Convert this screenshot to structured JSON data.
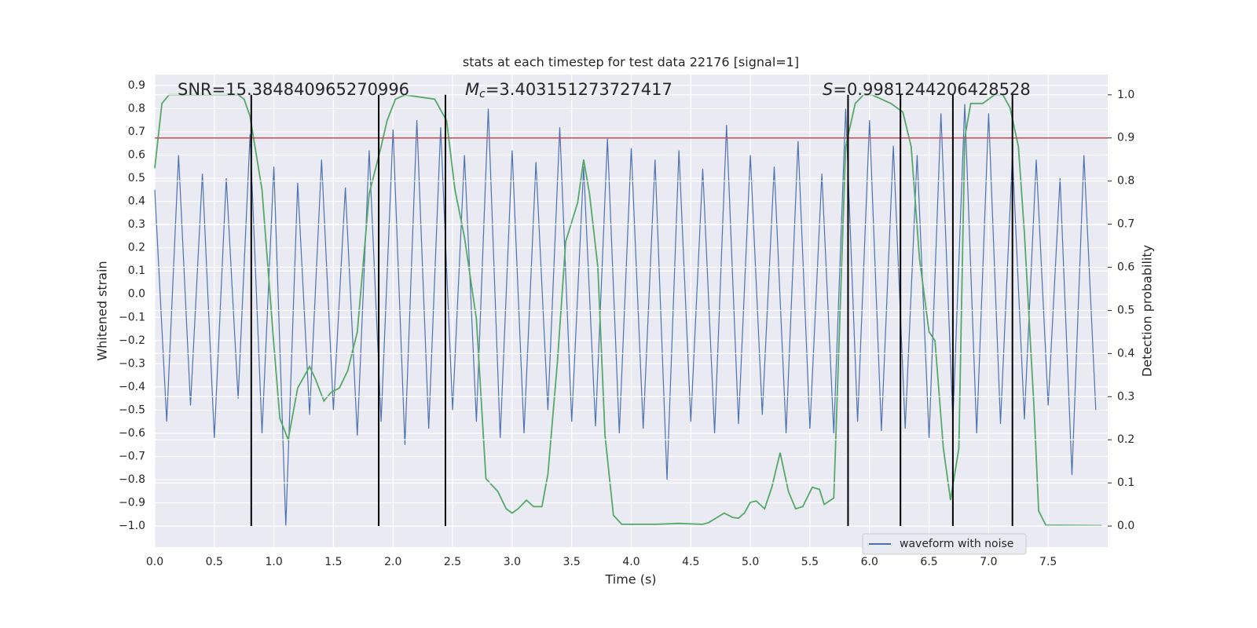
{
  "chart_data": {
    "type": "line",
    "title": "stats at each timestep for test data 22176 [signal=1]",
    "xlabel": "Time (s)",
    "ylabel": "Whitened strain",
    "y2label": "Detection probability",
    "annotations": {
      "snr": "SNR=15.384840965270996",
      "mc": {
        "symbol": "M",
        "subscript": "c",
        "text": "=3.403151273727417"
      },
      "s": {
        "symbol": "S",
        "text": "=0.9981244206428528"
      }
    },
    "xlim": [
      0,
      8.0
    ],
    "ylim": [
      -1.091,
      0.947
    ],
    "y2lim": [
      -0.049,
      1.047
    ],
    "xticks": [
      {
        "value": 0,
        "label": "0.0"
      },
      {
        "value": 0.5,
        "label": "0.5"
      },
      {
        "value": 1,
        "label": "1.0"
      },
      {
        "value": 1.5,
        "label": "1.5"
      },
      {
        "value": 2,
        "label": "2.0"
      },
      {
        "value": 2.5,
        "label": "2.5"
      },
      {
        "value": 3,
        "label": "3.0"
      },
      {
        "value": 3.5,
        "label": "3.5"
      },
      {
        "value": 4,
        "label": "4.0"
      },
      {
        "value": 4.5,
        "label": "4.5"
      },
      {
        "value": 5,
        "label": "5.0"
      },
      {
        "value": 5.5,
        "label": "5.5"
      },
      {
        "value": 6,
        "label": "6.0"
      },
      {
        "value": 6.5,
        "label": "6.5"
      },
      {
        "value": 7,
        "label": "7.0"
      },
      {
        "value": 7.5,
        "label": "7.5"
      }
    ],
    "yticks": [
      {
        "value": -1.0,
        "label": "−1.0"
      },
      {
        "value": -0.9,
        "label": "−0.9"
      },
      {
        "value": -0.8,
        "label": "−0.8"
      },
      {
        "value": -0.7,
        "label": "−0.7"
      },
      {
        "value": -0.6,
        "label": "−0.6"
      },
      {
        "value": -0.5,
        "label": "−0.5"
      },
      {
        "value": -0.4,
        "label": "−0.4"
      },
      {
        "value": -0.3,
        "label": "−0.3"
      },
      {
        "value": -0.2,
        "label": "−0.2"
      },
      {
        "value": -0.1,
        "label": "−0.1"
      },
      {
        "value": 0,
        "label": "0.0"
      },
      {
        "value": 0.1,
        "label": "0.1"
      },
      {
        "value": 0.2,
        "label": "0.2"
      },
      {
        "value": 0.3,
        "label": "0.3"
      },
      {
        "value": 0.4,
        "label": "0.4"
      },
      {
        "value": 0.5,
        "label": "0.5"
      },
      {
        "value": 0.6,
        "label": "0.6"
      },
      {
        "value": 0.7,
        "label": "0.7"
      },
      {
        "value": 0.8,
        "label": "0.8"
      },
      {
        "value": 0.9,
        "label": "0.9"
      }
    ],
    "y2ticks": [
      {
        "value": 0,
        "label": "0.0"
      },
      {
        "value": 0.1,
        "label": "0.1"
      },
      {
        "value": 0.2,
        "label": "0.2"
      },
      {
        "value": 0.3,
        "label": "0.3"
      },
      {
        "value": 0.4,
        "label": "0.4"
      },
      {
        "value": 0.5,
        "label": "0.5"
      },
      {
        "value": 0.6,
        "label": "0.6"
      },
      {
        "value": 0.7,
        "label": "0.7"
      },
      {
        "value": 0.8,
        "label": "0.8"
      },
      {
        "value": 0.9,
        "label": "0.9"
      },
      {
        "value": 1,
        "label": "1.0"
      }
    ],
    "grid": true,
    "legend": "lower right",
    "threshold": 0.9,
    "threshold_color": "#c44e52",
    "vlines": [
      0.81,
      1.88,
      2.44,
      5.82,
      6.26,
      6.7,
      7.2
    ],
    "vline_range": [
      -1.0,
      0.86
    ],
    "vline_color": "#000000",
    "series": [
      {
        "name": "waveform with noise",
        "color": "#4c72b0",
        "x": [
          0.0,
          0.1,
          0.2,
          0.3,
          0.4,
          0.5,
          0.6,
          0.7,
          0.8,
          0.9,
          1.0,
          1.1,
          1.2,
          1.3,
          1.4,
          1.5,
          1.6,
          1.7,
          1.8,
          1.9,
          2.0,
          2.1,
          2.2,
          2.3,
          2.4,
          2.5,
          2.6,
          2.7,
          2.8,
          2.9,
          3.0,
          3.1,
          3.2,
          3.3,
          3.4,
          3.5,
          3.6,
          3.7,
          3.8,
          3.9,
          4.0,
          4.1,
          4.2,
          4.3,
          4.4,
          4.5,
          4.6,
          4.7,
          4.8,
          4.9,
          5.0,
          5.1,
          5.2,
          5.3,
          5.4,
          5.5,
          5.6,
          5.7,
          5.8,
          5.9,
          6.0,
          6.1,
          6.2,
          6.3,
          6.4,
          6.5,
          6.6,
          6.7,
          6.8,
          6.9,
          7.0,
          7.1,
          7.2,
          7.3,
          7.4,
          7.5,
          7.6,
          7.7,
          7.8,
          7.9
        ],
        "values": [
          0.45,
          -0.55,
          0.6,
          -0.48,
          0.52,
          -0.62,
          0.5,
          -0.45,
          0.69,
          -0.6,
          0.55,
          -1.0,
          0.48,
          -0.52,
          0.58,
          -0.5,
          0.46,
          -0.61,
          0.62,
          -0.55,
          0.71,
          -0.65,
          0.75,
          -0.58,
          0.72,
          -0.5,
          0.6,
          -0.55,
          0.8,
          -0.62,
          0.62,
          -0.6,
          0.57,
          -0.5,
          0.72,
          -0.55,
          0.55,
          -0.57,
          0.67,
          -0.6,
          0.63,
          -0.58,
          0.58,
          -0.8,
          0.62,
          -0.55,
          0.54,
          -0.6,
          0.73,
          -0.56,
          0.6,
          -0.52,
          0.55,
          -0.6,
          0.66,
          -0.58,
          0.52,
          -0.6,
          0.8,
          -0.55,
          0.75,
          -0.59,
          0.64,
          -0.58,
          0.6,
          -0.62,
          0.78,
          -0.55,
          0.82,
          -0.6,
          0.78,
          -0.56,
          0.6,
          -0.54,
          0.58,
          -0.48,
          0.5,
          -0.78,
          0.6,
          -0.5
        ]
      },
      {
        "color": "#55a868",
        "axis": "y2",
        "x": [
          0.0,
          0.06,
          0.12,
          0.7,
          0.75,
          0.8,
          0.9,
          1.0,
          1.05,
          1.12,
          1.2,
          1.3,
          1.35,
          1.42,
          1.48,
          1.55,
          1.62,
          1.7,
          1.8,
          1.9,
          1.95,
          2.02,
          2.1,
          2.35,
          2.45,
          2.52,
          2.6,
          2.7,
          2.78,
          2.88,
          2.95,
          3.0,
          3.05,
          3.12,
          3.18,
          3.25,
          3.3,
          3.38,
          3.45,
          3.55,
          3.6,
          3.65,
          3.72,
          3.78,
          3.85,
          3.92,
          4.2,
          4.4,
          4.6,
          4.65,
          4.78,
          4.85,
          4.9,
          4.95,
          5.0,
          5.05,
          5.12,
          5.18,
          5.25,
          5.32,
          5.38,
          5.44,
          5.52,
          5.58,
          5.62,
          5.7,
          5.8,
          5.88,
          5.95,
          6.02,
          6.18,
          6.28,
          6.35,
          6.42,
          6.5,
          6.55,
          6.62,
          6.68,
          6.75,
          6.8,
          6.85,
          6.95,
          7.05,
          7.12,
          7.18,
          7.25,
          7.3,
          7.38,
          7.42,
          7.48,
          7.95
        ],
        "values": [
          0.83,
          0.98,
          1.0,
          1.0,
          0.99,
          0.95,
          0.78,
          0.42,
          0.25,
          0.2,
          0.32,
          0.37,
          0.34,
          0.29,
          0.31,
          0.32,
          0.36,
          0.45,
          0.77,
          0.88,
          0.94,
          0.99,
          1.0,
          0.99,
          0.94,
          0.78,
          0.67,
          0.48,
          0.11,
          0.08,
          0.04,
          0.03,
          0.04,
          0.06,
          0.045,
          0.045,
          0.12,
          0.38,
          0.66,
          0.75,
          0.85,
          0.77,
          0.6,
          0.21,
          0.025,
          0.004,
          0.004,
          0.006,
          0.004,
          0.008,
          0.03,
          0.02,
          0.018,
          0.03,
          0.055,
          0.058,
          0.04,
          0.09,
          0.17,
          0.08,
          0.04,
          0.045,
          0.09,
          0.085,
          0.05,
          0.065,
          0.88,
          0.98,
          1.0,
          1.0,
          0.98,
          0.96,
          0.88,
          0.62,
          0.45,
          0.43,
          0.18,
          0.06,
          0.18,
          0.9,
          0.98,
          0.98,
          1.0,
          1.0,
          0.97,
          0.88,
          0.68,
          0.28,
          0.035,
          0.002,
          0.001
        ]
      }
    ]
  }
}
